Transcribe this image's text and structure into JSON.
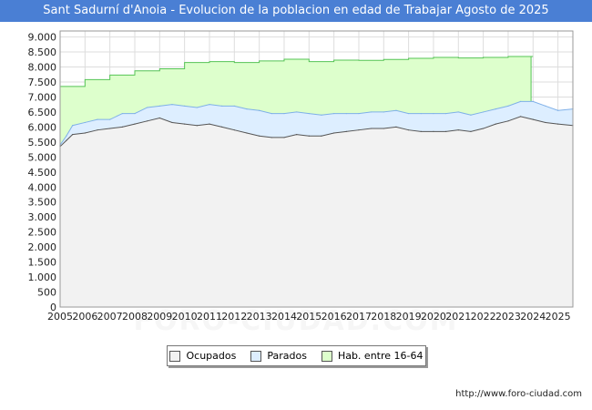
{
  "colors": {
    "title_bg": "#4a7fd4",
    "ocupados_fill": "#f2f2f2",
    "parados_fill": "#ddeeff",
    "hab_fill": "#ddffcc",
    "ocupados_line": "#555555",
    "parados_line": "#7fb0e8",
    "hab_line": "#55c455"
  },
  "watermark": "FORO-CIUDAD.COM",
  "footer": {
    "url": "http://www.foro-ciudad.com"
  },
  "chart_data": {
    "type": "area",
    "title": "Sant Sadurní d'Anoia - Evolucion de la poblacion en edad de Trabajar Agosto de 2025",
    "xlabel": "",
    "ylabel": "",
    "xlim": [
      2005,
      2025.6
    ],
    "ylim": [
      0,
      9200
    ],
    "y_ticks": [
      0,
      500,
      1000,
      1500,
      2000,
      2500,
      3000,
      3500,
      4000,
      4500,
      5000,
      5500,
      6000,
      6500,
      7000,
      7500,
      8000,
      8500,
      9000
    ],
    "y_tick_labels": [
      "0",
      "500",
      "1.000",
      "1.500",
      "2.000",
      "2.500",
      "3.000",
      "3.500",
      "4.000",
      "4.500",
      "5.000",
      "5.500",
      "6.000",
      "6.500",
      "7.000",
      "7.500",
      "8.000",
      "8.500",
      "9.000"
    ],
    "x_ticks": [
      2005,
      2006,
      2007,
      2008,
      2009,
      2010,
      2011,
      2012,
      2013,
      2014,
      2015,
      2016,
      2017,
      2018,
      2019,
      2020,
      2021,
      2022,
      2023,
      2024,
      2025
    ],
    "x_tick_labels": [
      "2005",
      "2006",
      "2007",
      "2008",
      "2009",
      "2010",
      "2011",
      "2012",
      "2013",
      "2014",
      "2015",
      "2016",
      "2017",
      "2018",
      "2019",
      "2020",
      "2021",
      "2022",
      "2023",
      "2024",
      "2025"
    ],
    "legend": {
      "placement": "bottom-center",
      "entries": [
        "Ocupados",
        "Parados",
        "Hab. entre 16-64"
      ]
    },
    "series": [
      {
        "name": "Hab. entre 16-64",
        "type": "step",
        "x": [
          2005,
          2006,
          2007,
          2008,
          2009,
          2010,
          2011,
          2012,
          2013,
          2014,
          2015,
          2016,
          2017,
          2018,
          2019,
          2020,
          2021,
          2022,
          2023,
          2024
        ],
        "values": [
          7350,
          7580,
          7730,
          7870,
          7940,
          8150,
          8180,
          8150,
          8200,
          8260,
          8180,
          8230,
          8220,
          8250,
          8290,
          8320,
          8300,
          8320,
          8350,
          8350
        ],
        "end_x": 2023.92
      },
      {
        "name": "Parados",
        "x": [
          2005.0,
          2005.25,
          2005.5,
          2006.0,
          2006.5,
          2007.0,
          2007.5,
          2008.0,
          2008.5,
          2009.0,
          2009.5,
          2010.0,
          2010.5,
          2011.0,
          2011.5,
          2012.0,
          2012.5,
          2013.0,
          2013.5,
          2014.0,
          2014.5,
          2015.0,
          2015.5,
          2016.0,
          2016.5,
          2017.0,
          2017.5,
          2018.0,
          2018.5,
          2019.0,
          2019.5,
          2020.0,
          2020.5,
          2021.0,
          2021.5,
          2022.0,
          2022.5,
          2023.0,
          2023.5,
          2024.0,
          2024.5,
          2025.0,
          2025.6
        ],
        "values": [
          5400,
          5700,
          6050,
          6150,
          6250,
          6250,
          6450,
          6450,
          6650,
          6700,
          6750,
          6700,
          6650,
          6750,
          6700,
          6700,
          6600,
          6550,
          6450,
          6450,
          6500,
          6450,
          6400,
          6450,
          6450,
          6450,
          6500,
          6500,
          6550,
          6450,
          6450,
          6450,
          6450,
          6500,
          6400,
          6500,
          6600,
          6700,
          6850,
          6850,
          6700,
          6550,
          6600
        ]
      },
      {
        "name": "Ocupados",
        "x": [
          2005.0,
          2005.25,
          2005.5,
          2006.0,
          2006.5,
          2007.0,
          2007.5,
          2008.0,
          2008.5,
          2009.0,
          2009.5,
          2010.0,
          2010.5,
          2011.0,
          2011.5,
          2012.0,
          2012.5,
          2013.0,
          2013.5,
          2014.0,
          2014.5,
          2015.0,
          2015.5,
          2016.0,
          2016.5,
          2017.0,
          2017.5,
          2018.0,
          2018.5,
          2019.0,
          2019.5,
          2020.0,
          2020.5,
          2021.0,
          2021.5,
          2022.0,
          2022.5,
          2023.0,
          2023.5,
          2024.0,
          2024.5,
          2025.0,
          2025.6
        ],
        "values": [
          5350,
          5550,
          5750,
          5800,
          5900,
          5950,
          6000,
          6100,
          6200,
          6300,
          6150,
          6100,
          6050,
          6100,
          6000,
          5900,
          5800,
          5700,
          5650,
          5650,
          5750,
          5700,
          5700,
          5800,
          5850,
          5900,
          5950,
          5950,
          6000,
          5900,
          5850,
          5850,
          5850,
          5900,
          5850,
          5950,
          6100,
          6200,
          6350,
          6250,
          6150,
          6100,
          6050
        ]
      }
    ]
  }
}
